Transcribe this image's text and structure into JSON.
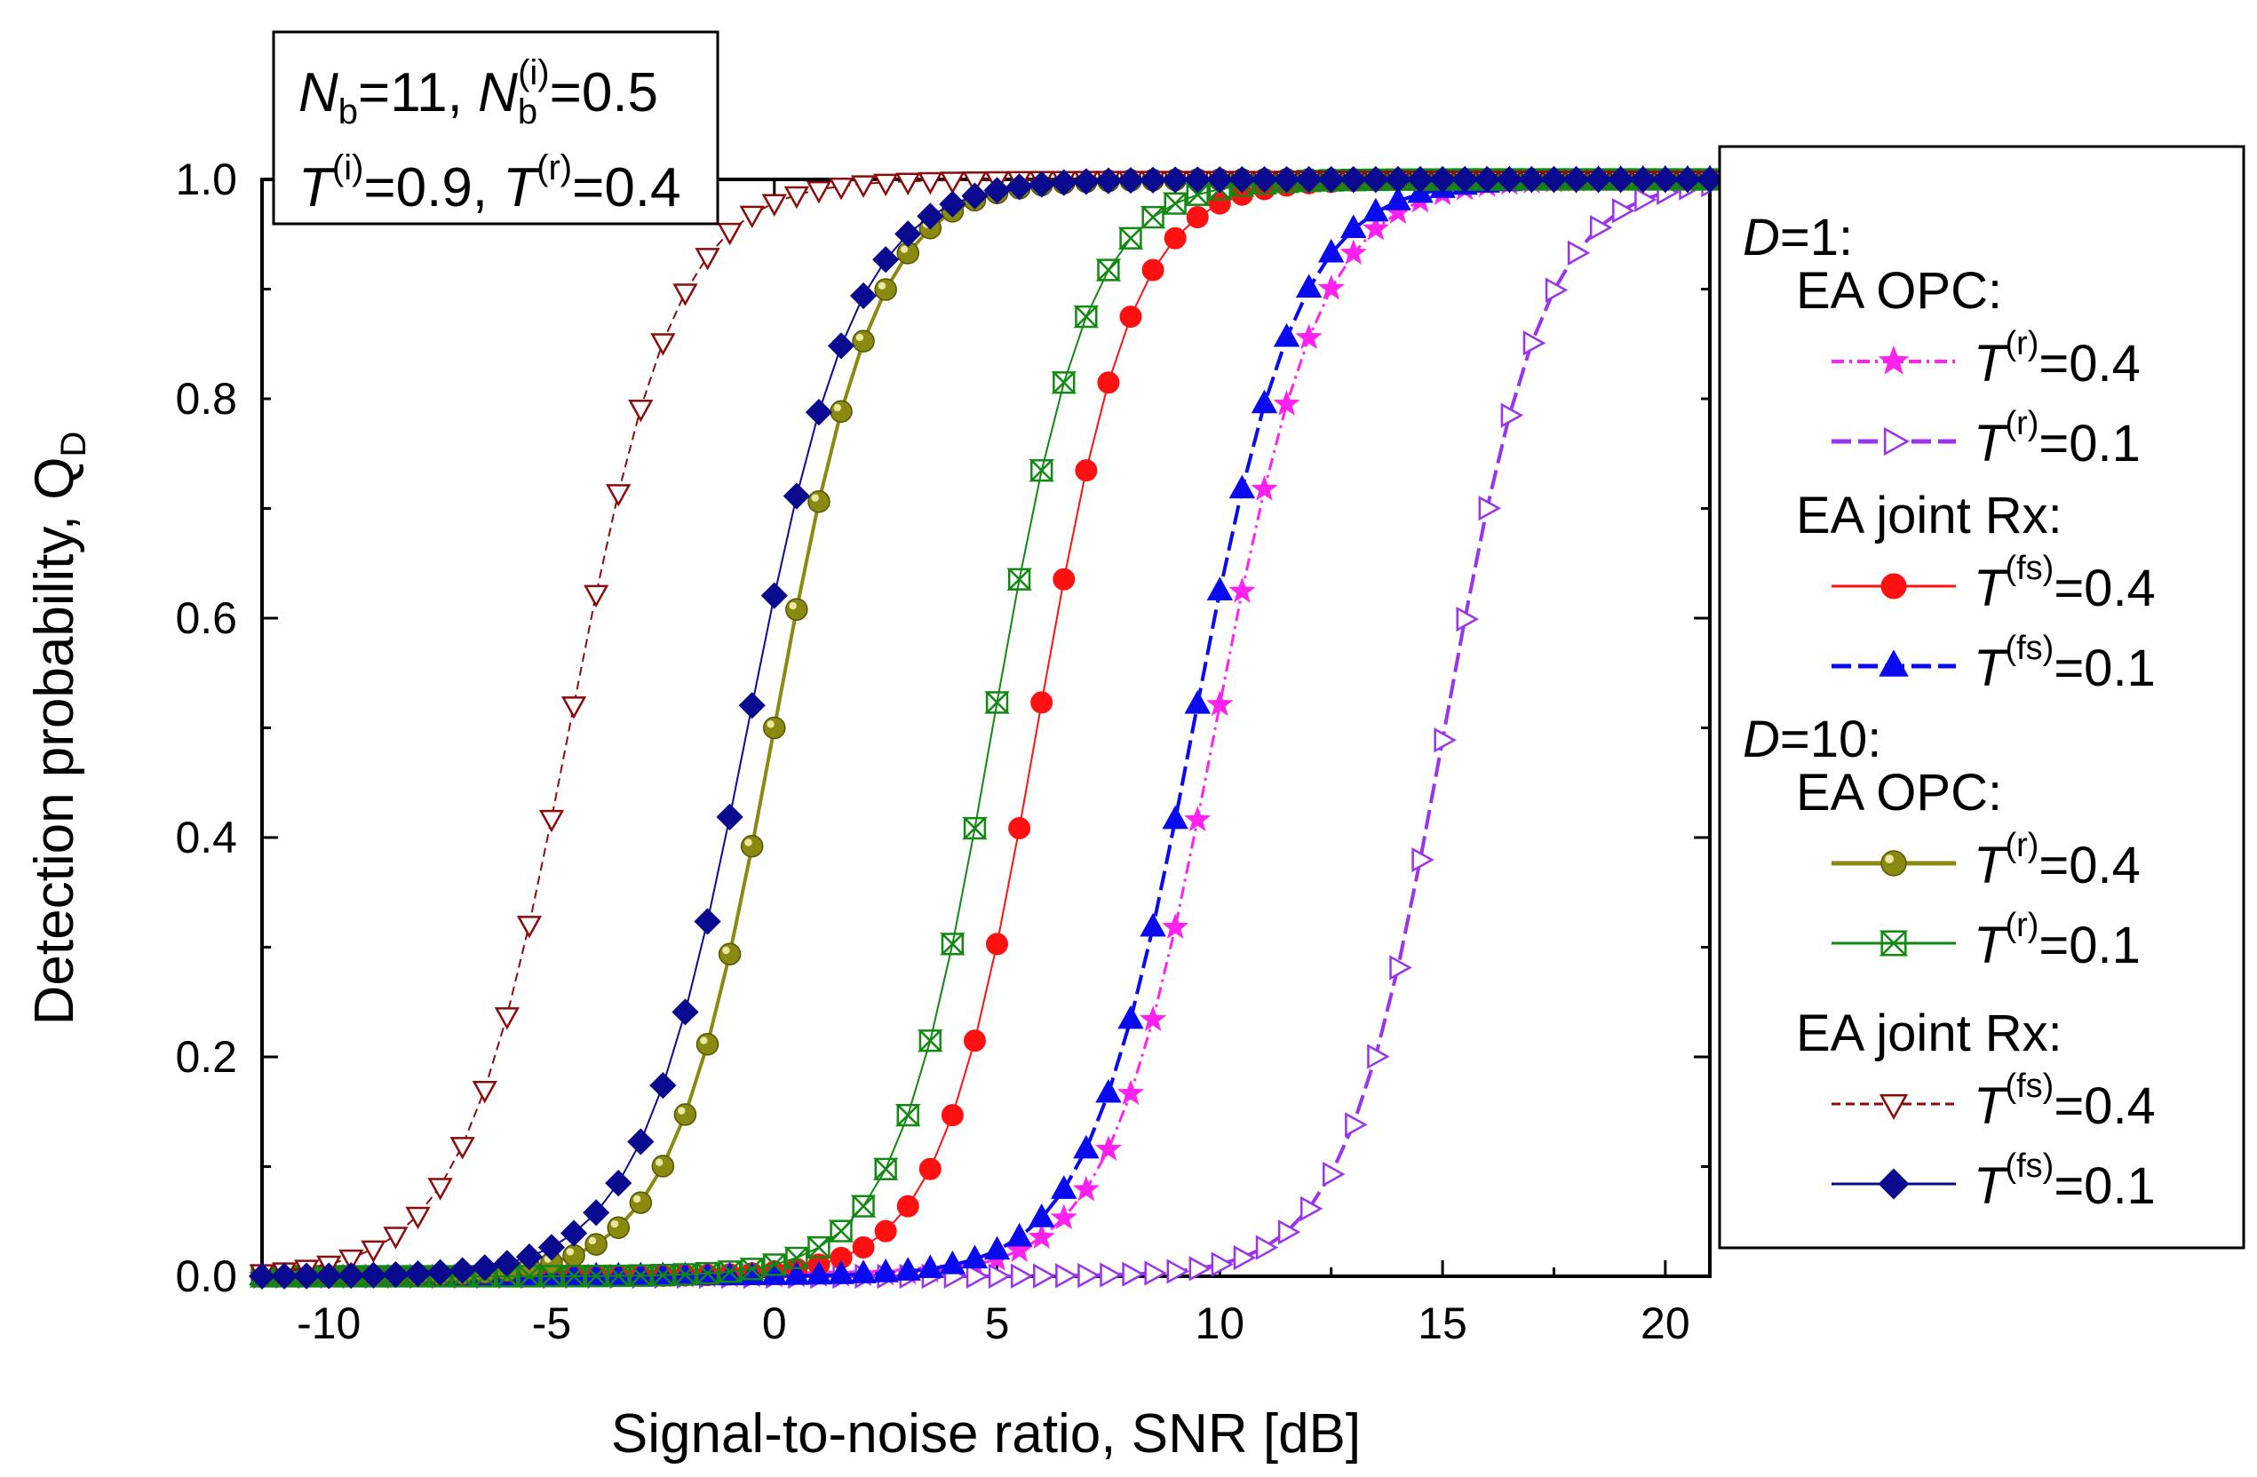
{
  "chart_data": {
    "type": "line",
    "xlabel": "Signal-to-noise ratio, SNR [dB]",
    "ylabel_main": "Detection probability, Q",
    "ylabel_sub": "D",
    "xlim": [
      -11.5,
      21
    ],
    "ylim": [
      0,
      1.0
    ],
    "x_ticks": [
      -10,
      -5,
      0,
      5,
      10,
      15,
      20
    ],
    "x_tick_labels": [
      "-10",
      "-5",
      "0",
      "5",
      "10",
      "15",
      "20"
    ],
    "y_ticks": [
      0.0,
      0.2,
      0.4,
      0.6,
      0.8,
      1.0
    ],
    "y_tick_labels": [
      "0.0",
      "0.2",
      "0.4",
      "0.6",
      "0.8",
      "1.0"
    ],
    "x_start": -11.5,
    "x_end": 21,
    "x_step": 0.5,
    "series": [
      {
        "key": "d1_opc_04",
        "group": "D=1",
        "scheme": "EA OPC",
        "label_var": "T",
        "label_sup": "(r)",
        "label_val": "=0.4",
        "color": "#ff22ee",
        "marker": "star",
        "filled": true,
        "lw": 3,
        "dash": "14,6,3,6",
        "mid": 9.9,
        "slope": 1.18
      },
      {
        "key": "d1_opc_01",
        "group": "D=1",
        "scheme": "EA OPC",
        "label_var": "T",
        "label_sup": "(r)",
        "label_val": "=0.1",
        "color": "#9933ee",
        "marker": "tri-right",
        "filled": false,
        "lw": 4,
        "dash": "22,8",
        "mid": 15.05,
        "slope": 1.12
      },
      {
        "key": "d1_joint_04",
        "group": "D=1",
        "scheme": "EA joint Rx",
        "label_var": "T",
        "label_sup": "(fs)",
        "label_val": "=0.4",
        "color": "#ff1111",
        "marker": "circle",
        "filled": true,
        "lw": 2,
        "dash": "",
        "mid": 5.9,
        "slope": 1.08
      },
      {
        "key": "d1_joint_01",
        "group": "D=1",
        "scheme": "EA joint Rx",
        "label_var": "T",
        "label_sup": "(fs)",
        "label_val": "=0.1",
        "color": "#0a0aee",
        "marker": "tri-up",
        "filled": true,
        "lw": 4,
        "dash": "22,8",
        "mid": 9.4,
        "slope": 1.18
      },
      {
        "key": "d10_opc_04",
        "group": "D=10",
        "scheme": "EA OPC",
        "label_var": "T",
        "label_sup": "(r)",
        "label_val": "=0.4",
        "color": "#8a8a10",
        "marker": "ball",
        "filled": true,
        "lw": 4,
        "dash": "",
        "mid": 0.0,
        "slope": 1.14
      },
      {
        "key": "d10_opc_01",
        "group": "D=10",
        "scheme": "EA OPC",
        "label_var": "T",
        "label_sup": "(r)",
        "label_val": "=0.1",
        "color": "#118811",
        "marker": "hourglass",
        "filled": false,
        "lw": 2,
        "dash": "",
        "mid": 4.9,
        "slope": 1.08
      },
      {
        "key": "d10_joint_04",
        "group": "D=10",
        "scheme": "EA joint Rx",
        "label_var": "T",
        "label_sup": "(fs)",
        "label_val": "=0.4",
        "color": "#8b0a0a",
        "marker": "tri-down",
        "filled": false,
        "lw": 2,
        "dash": "10,6",
        "mid": -4.6,
        "slope": 1.2
      },
      {
        "key": "d10_joint_01",
        "group": "D=10",
        "scheme": "EA joint Rx",
        "label_var": "T",
        "label_sup": "(fs)",
        "label_val": "=0.1",
        "color": "#0a0a90",
        "marker": "diamond",
        "filled": true,
        "lw": 2,
        "dash": "",
        "mid": -0.6,
        "slope": 1.22
      }
    ],
    "params_box": {
      "line1": {
        "n_var": "N",
        "n_sub": "b",
        "n_val": "=11, ",
        "ni_var": "N",
        "ni_sub": "b",
        "ni_sup": "(i)",
        "ni_val": "=0.5"
      },
      "line2": {
        "ti_var": "T",
        "ti_sup": "(i)",
        "ti_val": "=0.9, ",
        "tr_var": "T",
        "tr_sup": "(r)",
        "tr_val": "=0.4"
      }
    },
    "legend": {
      "position": "outside-right",
      "group1_var": "D",
      "group1_val": "=1:",
      "group2_var": "D",
      "group2_val": "=10:",
      "opc_label": "EA OPC:",
      "joint_label": "EA joint Rx:"
    }
  }
}
